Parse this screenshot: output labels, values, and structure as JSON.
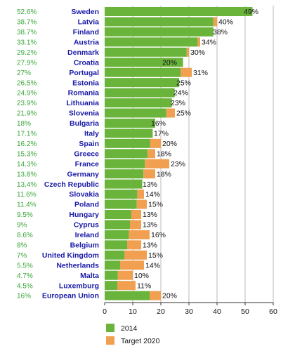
{
  "chart_data": {
    "type": "bar",
    "orientation": "horizontal",
    "stacked_overlay": true,
    "title": "",
    "xlabel": "",
    "ylabel": "",
    "xlim": [
      0,
      60
    ],
    "x_ticks": [
      0,
      10,
      20,
      30,
      40,
      50,
      60
    ],
    "grid": "vertical",
    "legend_position": "bottom",
    "colors": {
      "s2014": "#6ab43c",
      "target": "#f0a050",
      "grid": "#aaaaaa",
      "country_text": "#1a1aa8",
      "pct_text": "#3aa63a"
    },
    "series": [
      {
        "name": "2014",
        "key": "s2014"
      },
      {
        "name": "Target 2020",
        "key": "target"
      }
    ],
    "rows": [
      {
        "country": "Sweden",
        "value_2014": 52.6,
        "label_2014": "52.6%",
        "target_2020": 49,
        "label_target": "49%"
      },
      {
        "country": "Latvia",
        "value_2014": 38.7,
        "label_2014": "38.7%",
        "target_2020": 40,
        "label_target": "40%"
      },
      {
        "country": "Finland",
        "value_2014": 38.7,
        "label_2014": "38.7%",
        "target_2020": 38,
        "label_target": "38%"
      },
      {
        "country": "Austria",
        "value_2014": 33.1,
        "label_2014": "33.1%",
        "target_2020": 34,
        "label_target": "34%"
      },
      {
        "country": "Denmark",
        "value_2014": 29.2,
        "label_2014": "29.2%",
        "target_2020": 30,
        "label_target": "30%"
      },
      {
        "country": "Croatia",
        "value_2014": 27.9,
        "label_2014": "27.9%",
        "target_2020": 20,
        "label_target": "20%"
      },
      {
        "country": "Portugal",
        "value_2014": 27,
        "label_2014": "27%",
        "target_2020": 31,
        "label_target": "31%"
      },
      {
        "country": "Estonia",
        "value_2014": 26.5,
        "label_2014": "26.5%",
        "target_2020": 25,
        "label_target": "25%"
      },
      {
        "country": "Romania",
        "value_2014": 24.9,
        "label_2014": "24.9%",
        "target_2020": 24,
        "label_target": "24%"
      },
      {
        "country": "Lithuania",
        "value_2014": 23.9,
        "label_2014": "23.9%",
        "target_2020": 23,
        "label_target": "23%"
      },
      {
        "country": "Slovenia",
        "value_2014": 21.9,
        "label_2014": "21.9%",
        "target_2020": 25,
        "label_target": "25%"
      },
      {
        "country": "Bulgaria",
        "value_2014": 18,
        "label_2014": "18%",
        "target_2020": 16,
        "label_target": "16%"
      },
      {
        "country": "Italy",
        "value_2014": 17.1,
        "label_2014": "17.1%",
        "target_2020": 17,
        "label_target": "17%"
      },
      {
        "country": "Spain",
        "value_2014": 16.2,
        "label_2014": "16.2%",
        "target_2020": 20,
        "label_target": "20%"
      },
      {
        "country": "Greece",
        "value_2014": 15.3,
        "label_2014": "15.3%",
        "target_2020": 18,
        "label_target": "18%"
      },
      {
        "country": "France",
        "value_2014": 14.3,
        "label_2014": "14.3%",
        "target_2020": 23,
        "label_target": "23%"
      },
      {
        "country": "Germany",
        "value_2014": 13.8,
        "label_2014": "13.8%",
        "target_2020": 18,
        "label_target": "18%"
      },
      {
        "country": "Czech Republic",
        "value_2014": 13.4,
        "label_2014": "13.4%",
        "target_2020": 13,
        "label_target": "13%"
      },
      {
        "country": "Slovakia",
        "value_2014": 11.6,
        "label_2014": "11.6%",
        "target_2020": 14,
        "label_target": "14%"
      },
      {
        "country": "Poland",
        "value_2014": 11.4,
        "label_2014": "11.4%",
        "target_2020": 15,
        "label_target": "15%"
      },
      {
        "country": "Hungary",
        "value_2014": 9.5,
        "label_2014": "9.5%",
        "target_2020": 13,
        "label_target": "13%"
      },
      {
        "country": "Cyprus",
        "value_2014": 9,
        "label_2014": "9%",
        "target_2020": 13,
        "label_target": "13%"
      },
      {
        "country": "Ireland",
        "value_2014": 8.6,
        "label_2014": "8.6%",
        "target_2020": 16,
        "label_target": "16%"
      },
      {
        "country": "Belgium",
        "value_2014": 8,
        "label_2014": "8%",
        "target_2020": 13,
        "label_target": "13%"
      },
      {
        "country": "United Kingdom",
        "value_2014": 7,
        "label_2014": "7%",
        "target_2020": 15,
        "label_target": "15%"
      },
      {
        "country": "Netherlands",
        "value_2014": 5.5,
        "label_2014": "5.5%",
        "target_2020": 14,
        "label_target": "14%"
      },
      {
        "country": "Malta",
        "value_2014": 4.7,
        "label_2014": "4.7%",
        "target_2020": 10,
        "label_target": "10%"
      },
      {
        "country": "Luxemburg",
        "value_2014": 4.5,
        "label_2014": "4.5%",
        "target_2020": 11,
        "label_target": "11%"
      },
      {
        "country": "European Union",
        "value_2014": 16,
        "label_2014": "16%",
        "target_2020": 20,
        "label_target": "20%"
      }
    ]
  }
}
